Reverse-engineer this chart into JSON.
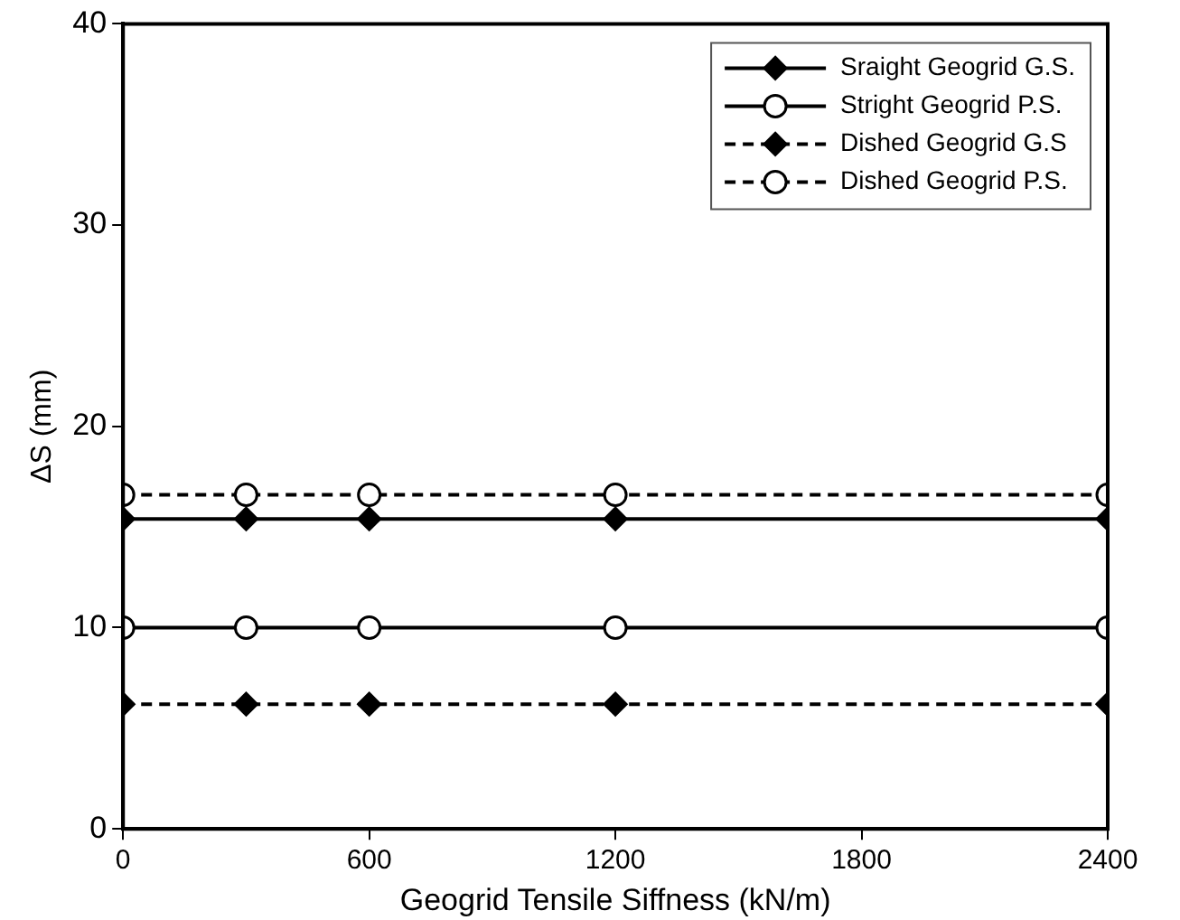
{
  "chart_data": {
    "type": "line",
    "xlabel": "Geogrid Tensile Siffness (kN/m)",
    "ylabel": "ΔS (mm)",
    "x": [
      0,
      300,
      600,
      1200,
      2400
    ],
    "series": [
      {
        "name": "Sraight Geogrid G.S.",
        "color": "#000000",
        "marker": "diamond",
        "line_style": "solid",
        "values": [
          15.4,
          15.4,
          15.4,
          15.4,
          15.4
        ]
      },
      {
        "name": "Stright Geogrid P.S.",
        "color": "#000000",
        "marker": "circle",
        "line_style": "solid",
        "values": [
          10,
          10,
          10,
          10,
          10
        ]
      },
      {
        "name": "Dished Geogrid G.S",
        "color": "#000000",
        "marker": "diamond",
        "line_style": "dashed",
        "values": [
          6.2,
          6.2,
          6.2,
          6.2,
          6.2
        ]
      },
      {
        "name": "Dished Geogrid P.S.",
        "color": "#000000",
        "marker": "circle",
        "line_style": "dashed",
        "values": [
          16.6,
          16.6,
          16.6,
          16.6,
          16.6
        ]
      }
    ],
    "xlim": [
      0,
      2400
    ],
    "xticks": [
      0,
      600,
      1200,
      1800,
      2400
    ],
    "ylim": [
      0,
      40
    ],
    "yticks": [
      0,
      10,
      20,
      30,
      40
    ],
    "grid": false,
    "legend": "top right"
  }
}
